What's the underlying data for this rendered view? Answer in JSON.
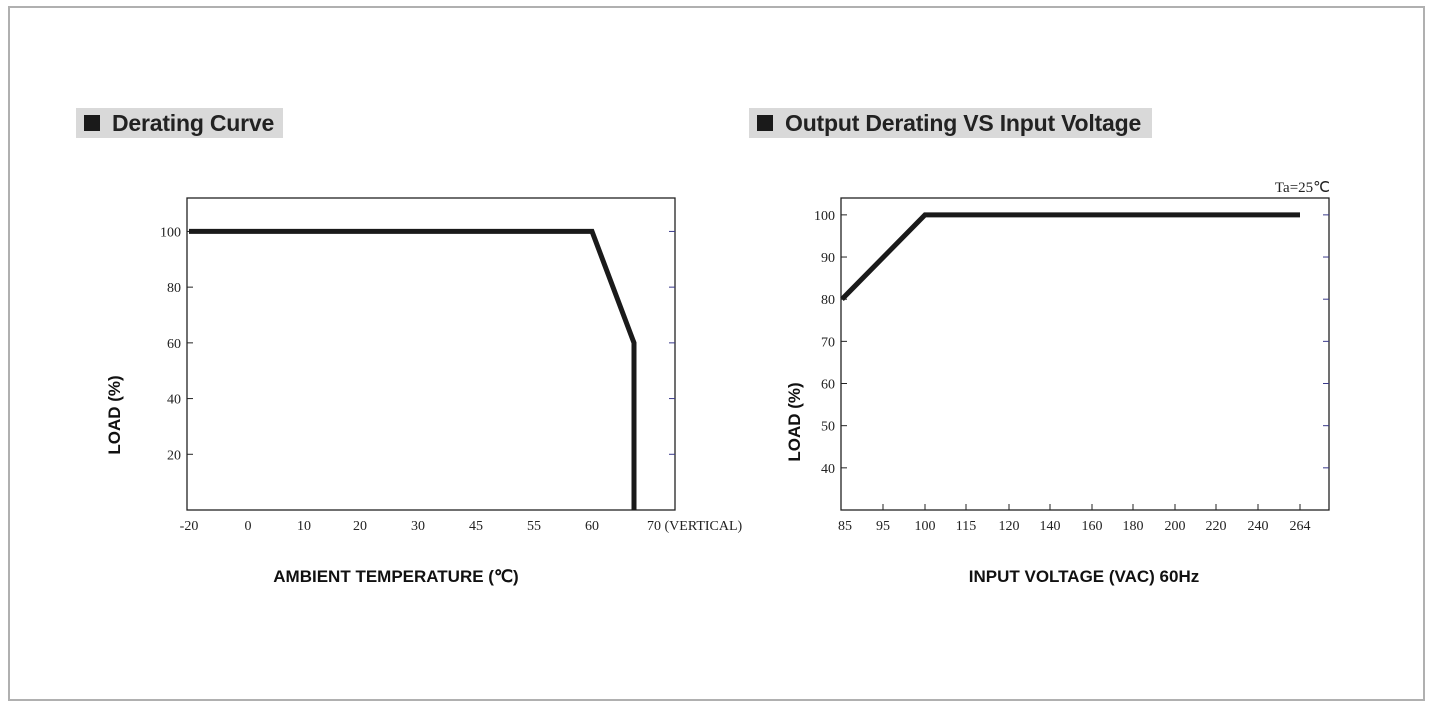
{
  "panels": {
    "left_title": "Derating Curve",
    "right_title": "Output Derating VS Input Voltage"
  },
  "chart_data": [
    {
      "type": "line",
      "title": "Derating Curve",
      "xlabel": "AMBIENT TEMPERATURE (℃)",
      "ylabel": "LOAD (%)",
      "x_tick_labels": [
        "-20",
        "0",
        "10",
        "20",
        "30",
        "45",
        "55",
        "60",
        "70 (VERTICAL)"
      ],
      "y_tick_labels": [
        "20",
        "40",
        "60",
        "80",
        "100"
      ],
      "ylim": [
        0,
        112
      ],
      "grid": false,
      "series": [
        {
          "points": [
            [
              "-20",
              100
            ],
            [
              "60",
              100
            ],
            [
              "70",
              60
            ],
            [
              "70",
              0
            ]
          ]
        }
      ]
    },
    {
      "type": "line",
      "title": "Output Derating VS Input Voltage",
      "xlabel": "INPUT VOLTAGE (VAC) 60Hz",
      "ylabel": "LOAD (%)",
      "annotation": "Ta=25℃",
      "x_tick_labels": [
        "85",
        "95",
        "100",
        "115",
        "120",
        "140",
        "160",
        "180",
        "200",
        "220",
        "240",
        "264"
      ],
      "y_tick_labels": [
        "40",
        "50",
        "60",
        "70",
        "80",
        "90",
        "100"
      ],
      "ylim": [
        30,
        104
      ],
      "grid": false,
      "series": [
        {
          "points": [
            [
              "85",
              80
            ],
            [
              "100",
              100
            ],
            [
              "264",
              100
            ]
          ]
        }
      ]
    }
  ]
}
